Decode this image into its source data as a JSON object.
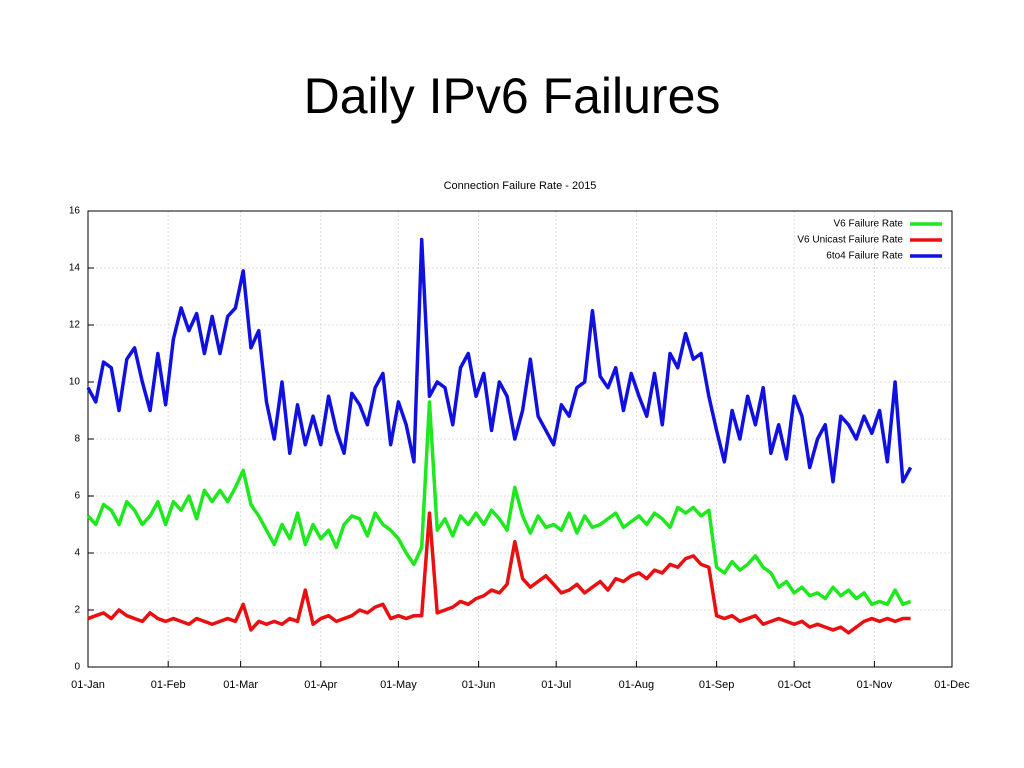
{
  "slide_title": "Daily IPv6 Failures",
  "chart_data": {
    "type": "line",
    "title": "Connection Failure Rate - 2015",
    "x": [
      0,
      3,
      6,
      9,
      12,
      15,
      18,
      21,
      24,
      27,
      30,
      33,
      36,
      39,
      42,
      45,
      48,
      51,
      54,
      57,
      60,
      63,
      66,
      69,
      72,
      75,
      78,
      81,
      84,
      87,
      90,
      93,
      96,
      99,
      102,
      105,
      108,
      111,
      114,
      117,
      120,
      123,
      126,
      129,
      132,
      135,
      138,
      141,
      144,
      147,
      150,
      153,
      156,
      159,
      162,
      165,
      168,
      171,
      174,
      177,
      180,
      183,
      186,
      189,
      192,
      195,
      198,
      201,
      204,
      207,
      210,
      213,
      216,
      219,
      222,
      225,
      228,
      231,
      234,
      237,
      240,
      243,
      246,
      249,
      252,
      255,
      258,
      261,
      264,
      267,
      270,
      273,
      276,
      279,
      282,
      285,
      288,
      291,
      294,
      297,
      300,
      303,
      306,
      309,
      312,
      315,
      318
    ],
    "series": [
      {
        "name": "V6 Failure Rate",
        "color": "#1ee81e",
        "values": [
          5.3,
          5.0,
          5.7,
          5.5,
          5.0,
          5.8,
          5.5,
          5.0,
          5.3,
          5.8,
          5.0,
          5.8,
          5.5,
          6.0,
          5.2,
          6.2,
          5.8,
          6.2,
          5.8,
          6.3,
          6.9,
          5.7,
          5.3,
          4.8,
          4.3,
          5.0,
          4.5,
          5.4,
          4.3,
          5.0,
          4.5,
          4.8,
          4.2,
          5.0,
          5.3,
          5.2,
          4.6,
          5.4,
          5.0,
          4.8,
          4.5,
          4.0,
          3.6,
          4.2,
          9.3,
          4.8,
          5.2,
          4.6,
          5.3,
          5.0,
          5.4,
          5.0,
          5.5,
          5.2,
          4.8,
          6.3,
          5.3,
          4.7,
          5.3,
          4.9,
          5.0,
          4.8,
          5.4,
          4.7,
          5.3,
          4.9,
          5.0,
          5.2,
          5.4,
          4.9,
          5.1,
          5.3,
          5.0,
          5.4,
          5.2,
          4.9,
          5.6,
          5.4,
          5.6,
          5.3,
          5.5,
          3.5,
          3.3,
          3.7,
          3.4,
          3.6,
          3.9,
          3.5,
          3.3,
          2.8,
          3.0,
          2.6,
          2.8,
          2.5,
          2.6,
          2.4,
          2.8,
          2.5,
          2.7,
          2.4,
          2.6,
          2.2,
          2.3,
          2.2,
          2.7,
          2.2,
          2.3
        ]
      },
      {
        "name": "V6 Unicast Failure Rate",
        "color": "#e81010",
        "values": [
          1.7,
          1.8,
          1.9,
          1.7,
          2.0,
          1.8,
          1.7,
          1.6,
          1.9,
          1.7,
          1.6,
          1.7,
          1.6,
          1.5,
          1.7,
          1.6,
          1.5,
          1.6,
          1.7,
          1.6,
          2.2,
          1.3,
          1.6,
          1.5,
          1.6,
          1.5,
          1.7,
          1.6,
          2.7,
          1.5,
          1.7,
          1.8,
          1.6,
          1.7,
          1.8,
          2.0,
          1.9,
          2.1,
          2.2,
          1.7,
          1.8,
          1.7,
          1.8,
          1.8,
          5.4,
          1.9,
          2.0,
          2.1,
          2.3,
          2.2,
          2.4,
          2.5,
          2.7,
          2.6,
          2.9,
          4.4,
          3.1,
          2.8,
          3.0,
          3.2,
          2.9,
          2.6,
          2.7,
          2.9,
          2.6,
          2.8,
          3.0,
          2.7,
          3.1,
          3.0,
          3.2,
          3.3,
          3.1,
          3.4,
          3.3,
          3.6,
          3.5,
          3.8,
          3.9,
          3.6,
          3.5,
          1.8,
          1.7,
          1.8,
          1.6,
          1.7,
          1.8,
          1.5,
          1.6,
          1.7,
          1.6,
          1.5,
          1.6,
          1.4,
          1.5,
          1.4,
          1.3,
          1.4,
          1.2,
          1.4,
          1.6,
          1.7,
          1.6,
          1.7,
          1.6,
          1.7,
          1.7
        ]
      },
      {
        "name": "6to4 Failure Rate",
        "color": "#1010e0",
        "values": [
          9.8,
          9.3,
          10.7,
          10.5,
          9.0,
          10.8,
          11.2,
          10.0,
          9.0,
          11.0,
          9.2,
          11.5,
          12.6,
          11.8,
          12.4,
          11.0,
          12.3,
          11.0,
          12.3,
          12.6,
          13.9,
          11.2,
          11.8,
          9.3,
          8.0,
          10.0,
          7.5,
          9.2,
          7.8,
          8.8,
          7.8,
          9.5,
          8.3,
          7.5,
          9.6,
          9.2,
          8.5,
          9.8,
          10.3,
          7.8,
          9.3,
          8.5,
          7.2,
          15.0,
          9.5,
          10.0,
          9.8,
          8.5,
          10.5,
          11.0,
          9.5,
          10.3,
          8.3,
          10.0,
          9.5,
          8.0,
          9.0,
          10.8,
          8.8,
          8.3,
          7.8,
          9.2,
          8.8,
          9.8,
          10.0,
          12.5,
          10.2,
          9.8,
          10.5,
          9.0,
          10.3,
          9.5,
          8.8,
          10.3,
          8.5,
          11.0,
          10.5,
          11.7,
          10.8,
          11.0,
          9.5,
          8.3,
          7.2,
          9.0,
          8.0,
          9.5,
          8.5,
          9.8,
          7.5,
          8.5,
          7.3,
          9.5,
          8.8,
          7.0,
          8.0,
          8.5,
          6.5,
          8.8,
          8.5,
          8.0,
          8.8,
          8.2,
          9.0,
          7.2,
          10.0,
          6.5,
          7.0
        ]
      }
    ],
    "xlim": [
      0,
      334
    ],
    "xticks": [
      {
        "value": 0,
        "label": "01-Jan"
      },
      {
        "value": 31,
        "label": "01-Feb"
      },
      {
        "value": 59,
        "label": "01-Mar"
      },
      {
        "value": 90,
        "label": "01-Apr"
      },
      {
        "value": 120,
        "label": "01-May"
      },
      {
        "value": 151,
        "label": "01-Jun"
      },
      {
        "value": 181,
        "label": "01-Jul"
      },
      {
        "value": 212,
        "label": "01-Aug"
      },
      {
        "value": 243,
        "label": "01-Sep"
      },
      {
        "value": 273,
        "label": "01-Oct"
      },
      {
        "value": 304,
        "label": "01-Nov"
      },
      {
        "value": 334,
        "label": "01-Dec"
      }
    ],
    "ylim": [
      0,
      16
    ],
    "yticks": [
      0,
      2,
      4,
      6,
      8,
      10,
      12,
      14,
      16
    ],
    "grid": true,
    "legend": "upper right"
  }
}
